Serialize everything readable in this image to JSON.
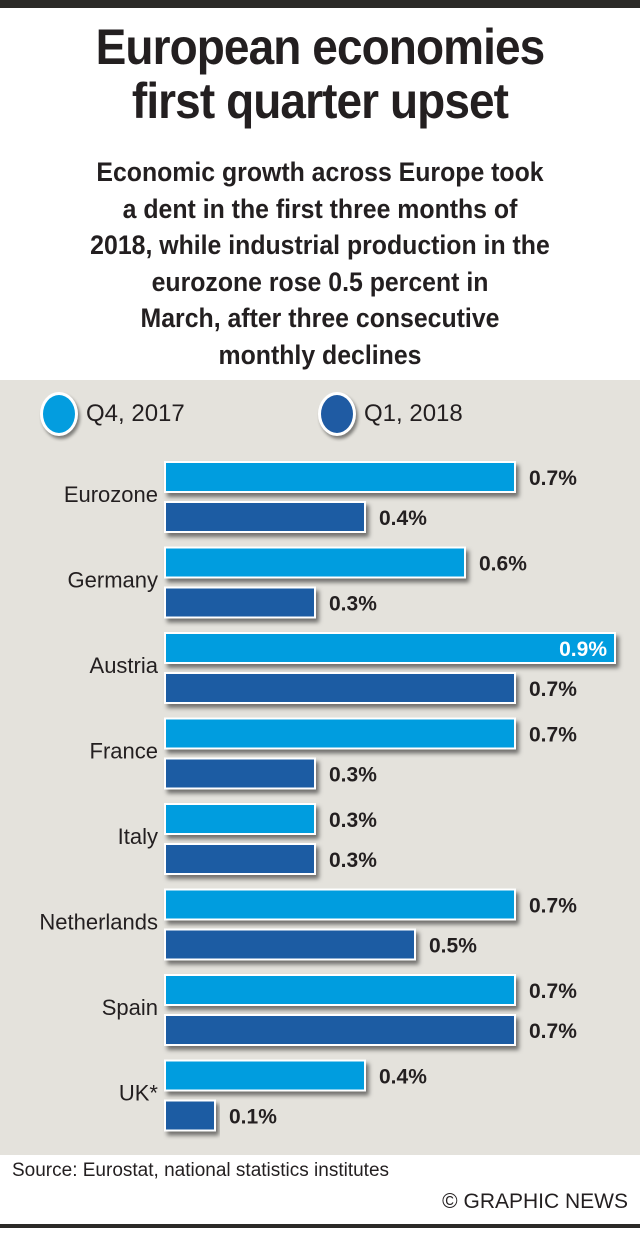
{
  "title_lines": [
    "European economies",
    "first quarter upset"
  ],
  "subtitle_lines": [
    "Economic growth across Europe took",
    "a dent in the first three months of",
    "2018, while industrial production in the",
    "eurozone rose 0.5 percent in",
    "March, after three consecutive",
    "monthly declines"
  ],
  "colors": {
    "q4_2017": "#039ddf",
    "q1_2018": "#1f5ba3",
    "panel_background": "#e4e2dc",
    "text": "#231f20"
  },
  "chart_data": {
    "type": "bar",
    "orientation": "horizontal",
    "title": "European economies first quarter upset",
    "xlabel": "",
    "ylabel": "",
    "unit": "%",
    "xlim": [
      0,
      0.9
    ],
    "grid": false,
    "legend_position": "top",
    "categories": [
      "Eurozone",
      "Germany",
      "Austria",
      "France",
      "Italy",
      "Netherlands",
      "Spain",
      "UK*"
    ],
    "series": [
      {
        "name": "Q4, 2017",
        "color": "#039ddf",
        "values": [
          0.7,
          0.6,
          0.9,
          0.7,
          0.3,
          0.7,
          0.7,
          0.4
        ]
      },
      {
        "name": "Q1, 2018",
        "color": "#1f5ba3",
        "values": [
          0.4,
          0.3,
          0.7,
          0.3,
          0.3,
          0.5,
          0.7,
          0.1
        ]
      }
    ],
    "data_labels": [
      [
        "0.7%",
        "0.6%",
        "0.9%",
        "0.7%",
        "0.3%",
        "0.7%",
        "0.7%",
        "0.4%"
      ],
      [
        "0.4%",
        "0.3%",
        "0.7%",
        "0.3%",
        "0.3%",
        "0.5%",
        "0.7%",
        "0.1%"
      ]
    ]
  },
  "legend": [
    {
      "label": "Q4, 2017"
    },
    {
      "label": "Q1, 2018"
    }
  ],
  "footer": {
    "source": "Source: Eurostat, national statistics institutes",
    "credit": "© GRAPHIC NEWS"
  }
}
